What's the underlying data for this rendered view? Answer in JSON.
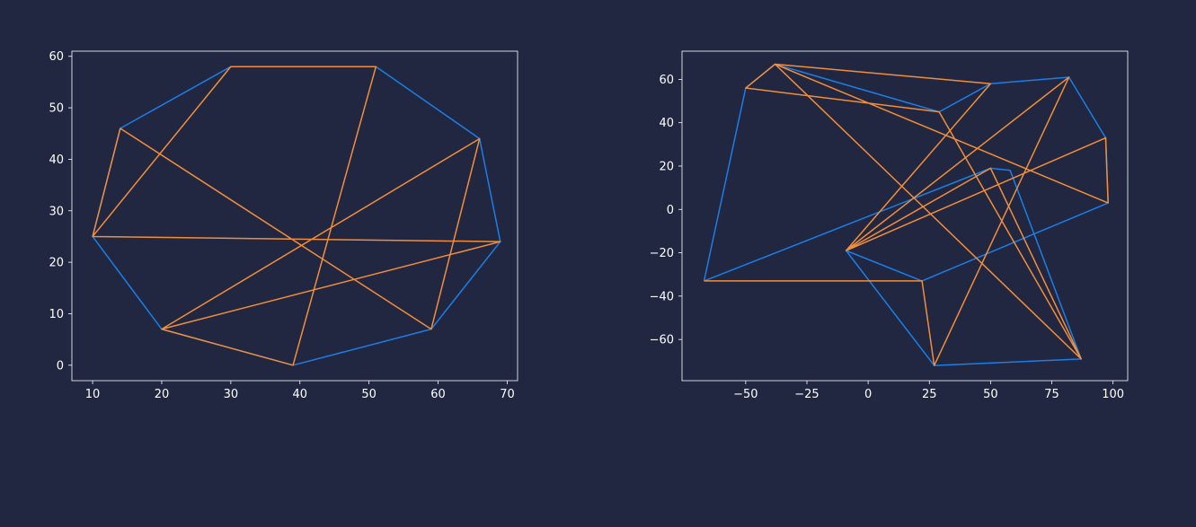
{
  "colors": {
    "background": "#222741",
    "axes_background": "#222741",
    "axes_edge": "#ffffff",
    "tick_label": "#ffffff",
    "blue_series": "#1a7ee6",
    "orange_series": "#f28e3a"
  },
  "chart_data": [
    {
      "type": "line",
      "title": "",
      "xlabel": "",
      "ylabel": "",
      "xlim": [
        7,
        71.5
      ],
      "ylim": [
        -3,
        61
      ],
      "xticks": [
        10,
        20,
        30,
        40,
        50,
        60,
        70
      ],
      "yticks": [
        0,
        10,
        20,
        30,
        40,
        50,
        60
      ],
      "xtick_labels": [
        "10",
        "20",
        "30",
        "40",
        "50",
        "60",
        "70"
      ],
      "ytick_labels": [
        "0",
        "10",
        "20",
        "30",
        "40",
        "50",
        "60"
      ],
      "grid": false,
      "series": [
        {
          "color": "#1a7ee6",
          "closed": true,
          "points": [
            [
              14,
              46
            ],
            [
              30,
              58
            ],
            [
              51,
              58
            ],
            [
              66,
              44
            ],
            [
              69,
              24
            ],
            [
              59,
              7
            ],
            [
              39,
              0
            ],
            [
              20,
              7
            ],
            [
              10,
              25
            ]
          ]
        },
        {
          "color": "#f28e3a",
          "closed": true,
          "points": [
            [
              10,
              25
            ],
            [
              69,
              24
            ],
            [
              20,
              7
            ],
            [
              66,
              44
            ],
            [
              59,
              7
            ],
            [
              14,
              46
            ],
            [
              10,
              25
            ],
            [
              30,
              58
            ],
            [
              51,
              58
            ],
            [
              39,
              0
            ],
            [
              20,
              7
            ],
            [
              69,
              24
            ]
          ]
        }
      ]
    },
    {
      "type": "line",
      "title": "",
      "xlabel": "",
      "ylabel": "",
      "xlim": [
        -76,
        106
      ],
      "ylim": [
        -79,
        73
      ],
      "xticks": [
        -50,
        -25,
        0,
        25,
        50,
        75,
        100
      ],
      "yticks": [
        -60,
        -40,
        -20,
        0,
        20,
        40,
        60
      ],
      "xtick_labels": [
        "−50",
        "−25",
        "0",
        "25",
        "50",
        "75",
        "100"
      ],
      "ytick_labels": [
        "−60",
        "−40",
        "−20",
        "0",
        "20",
        "40",
        "60"
      ],
      "grid": false,
      "series": [
        {
          "color": "#1a7ee6",
          "closed": false,
          "points": [
            [
              -67,
              -33
            ],
            [
              -50,
              56
            ],
            [
              -38,
              67
            ],
            [
              29,
              45
            ],
            [
              50,
              58
            ],
            [
              82,
              61
            ],
            [
              97,
              33
            ],
            [
              98,
              3
            ],
            [
              22,
              -33
            ],
            [
              -9,
              -19
            ],
            [
              27,
              -72
            ],
            [
              87,
              -69
            ],
            [
              58,
              18
            ],
            [
              50,
              19
            ],
            [
              -67,
              -33
            ]
          ]
        },
        {
          "color": "#f28e3a",
          "closed": false,
          "points": [
            [
              -67,
              -33
            ],
            [
              22,
              -33
            ],
            [
              27,
              -72
            ],
            [
              82,
              61
            ],
            [
              -9,
              -19
            ],
            [
              97,
              33
            ],
            [
              98,
              3
            ],
            [
              -38,
              67
            ],
            [
              87,
              -69
            ],
            [
              29,
              45
            ],
            [
              -50,
              56
            ],
            [
              -38,
              67
            ],
            [
              50,
              58
            ],
            [
              -9,
              -19
            ],
            [
              50,
              19
            ],
            [
              87,
              -69
            ]
          ]
        }
      ]
    }
  ]
}
